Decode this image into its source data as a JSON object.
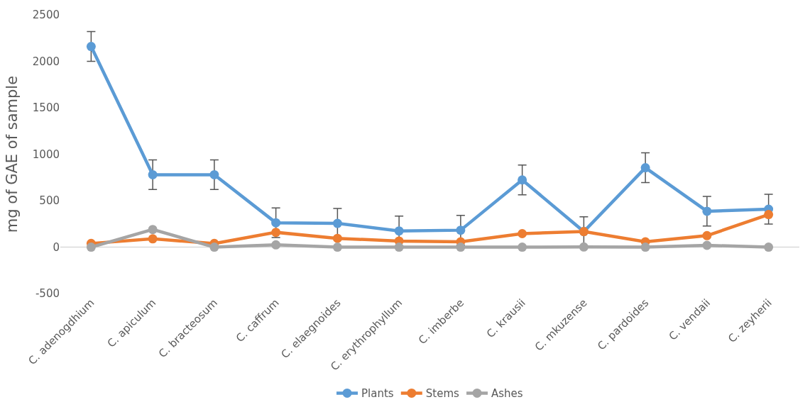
{
  "chart_data": {
    "type": "line",
    "ylabel": "mg of GAE of sample",
    "categories": [
      "C. adenogdhium",
      "C. apiculum",
      "C. bracteosum",
      "C. caffrum",
      "C. elaegnoides",
      "C. erythrophyllum",
      "C. imberbe",
      "C. krausii",
      "C. mkuzense",
      "C. pardoides",
      "C. vendaii",
      "C. zeyherii"
    ],
    "series": [
      {
        "name": "Plants",
        "color": "#5b9bd5",
        "values": [
          2160,
          780,
          780,
          263,
          256,
          175,
          183,
          724,
          168,
          855,
          387,
          409
        ],
        "errors": [
          160,
          160,
          160,
          160,
          160,
          160,
          160,
          160,
          160,
          160,
          160,
          160
        ]
      },
      {
        "name": "Stems",
        "color": "#ed7d31",
        "values": [
          40,
          90,
          40,
          160,
          95,
          66,
          58,
          146,
          168,
          58,
          124,
          351
        ]
      },
      {
        "name": "Ashes",
        "color": "#a5a5a5",
        "values": [
          0,
          190,
          0,
          25,
          0,
          0,
          0,
          0,
          2,
          0,
          20,
          0
        ]
      }
    ],
    "ylim": [
      -500,
      2500
    ],
    "yticks": [
      -500,
      0,
      500,
      1000,
      1500,
      2000,
      2500
    ],
    "ref_lines": [
      {
        "axis": "y",
        "value": 0,
        "color": "#d9d9d9"
      }
    ],
    "grid": false,
    "legend": "bottom",
    "marker": "circle",
    "line_style": "solid"
  }
}
